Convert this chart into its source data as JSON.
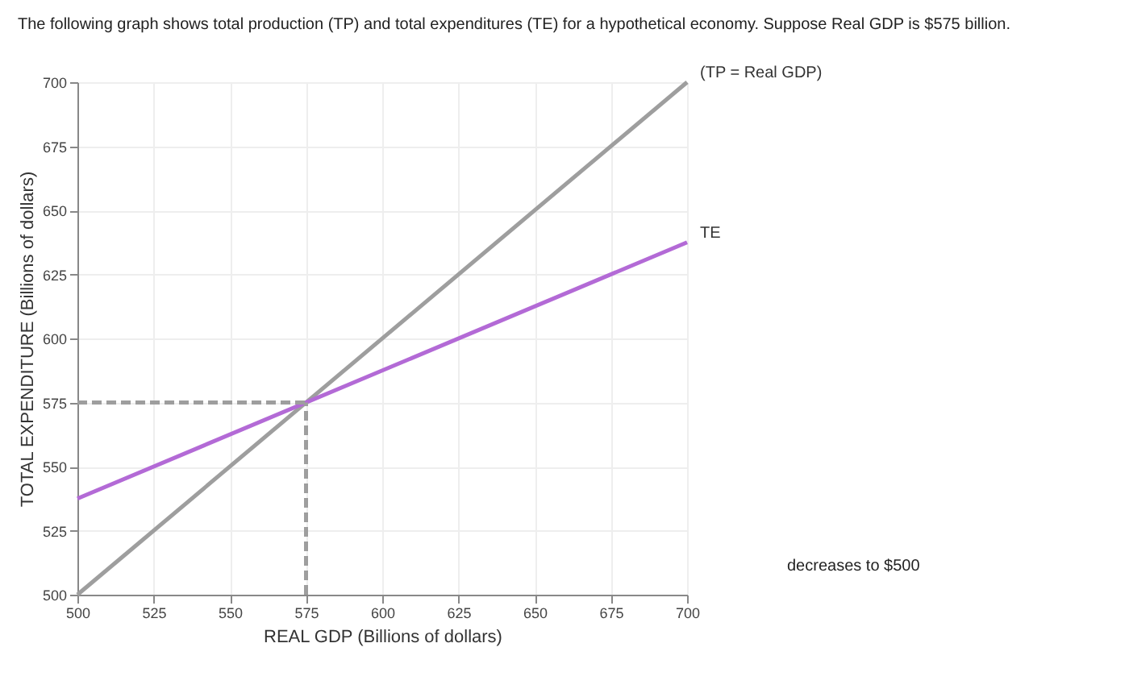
{
  "chart_data": {
    "type": "line",
    "title": "The following graph shows total production (TP) and total expenditures (TE) for a hypothetical economy. Suppose Real GDP is $575 billion.",
    "xlabel": "REAL GDP (Billions of dollars)",
    "ylabel": "TOTAL EXPENDITURE (Billions of dollars)",
    "series": [
      {
        "name": "(TP = Real GDP)",
        "color": "#9e9e9e",
        "x": [
          500,
          700
        ],
        "values": [
          500,
          700
        ]
      },
      {
        "name": "TE",
        "color": "#b36ad6",
        "x": [
          500,
          700
        ],
        "values": [
          537.5,
          637.5
        ]
      },
      {
        "color": "#9e9e9e",
        "x": [
          500,
          575
        ],
        "values": [
          575,
          575
        ],
        "line_style": "dashed"
      },
      {
        "color": "#9e9e9e",
        "x": [
          575,
          575
        ],
        "values": [
          500,
          575
        ],
        "line_style": "dashed"
      }
    ],
    "xlim": [
      500,
      700
    ],
    "ylim": [
      500,
      700
    ],
    "xticks": [
      500,
      525,
      550,
      575,
      600,
      625,
      650,
      675,
      700
    ],
    "yticks": [
      500,
      525,
      550,
      575,
      600,
      625,
      650,
      675,
      700
    ],
    "grid": true,
    "legend": false,
    "marker": "none",
    "line_style": "solid",
    "annotations": [
      "decreases to $500"
    ]
  }
}
